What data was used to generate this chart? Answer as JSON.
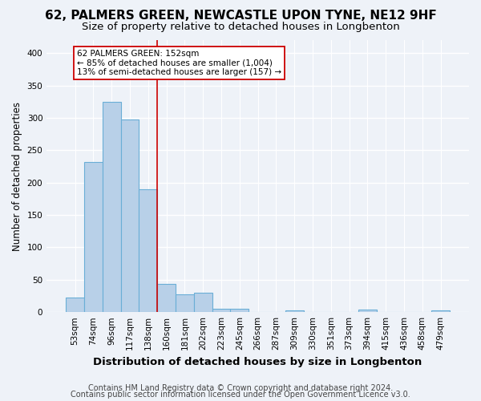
{
  "title": "62, PALMERS GREEN, NEWCASTLE UPON TYNE, NE12 9HF",
  "subtitle": "Size of property relative to detached houses in Longbenton",
  "xlabel": "Distribution of detached houses by size in Longbenton",
  "ylabel": "Number of detached properties",
  "categories": [
    "53sqm",
    "74sqm",
    "96sqm",
    "117sqm",
    "138sqm",
    "160sqm",
    "181sqm",
    "202sqm",
    "223sqm",
    "245sqm",
    "266sqm",
    "287sqm",
    "309sqm",
    "330sqm",
    "351sqm",
    "373sqm",
    "394sqm",
    "415sqm",
    "436sqm",
    "458sqm",
    "479sqm"
  ],
  "values": [
    23,
    232,
    325,
    297,
    190,
    44,
    28,
    30,
    5,
    5,
    0,
    0,
    3,
    0,
    0,
    0,
    4,
    0,
    0,
    0,
    3
  ],
  "bar_color": "#b8d0e8",
  "bar_edge_color": "#6aaed6",
  "vline_x": 4.5,
  "vline_color": "#cc0000",
  "annotation_line1": "62 PALMERS GREEN: 152sqm",
  "annotation_line2": "← 85% of detached houses are smaller (1,004)",
  "annotation_line3": "13% of semi-detached houses are larger (157) →",
  "annotation_box_color": "#ffffff",
  "annotation_box_edge": "#cc0000",
  "ylim": [
    0,
    420
  ],
  "yticks": [
    0,
    50,
    100,
    150,
    200,
    250,
    300,
    350,
    400
  ],
  "footer_line1": "Contains HM Land Registry data © Crown copyright and database right 2024.",
  "footer_line2": "Contains public sector information licensed under the Open Government Licence v3.0.",
  "bg_color": "#eef2f8",
  "grid_color": "#ffffff",
  "title_fontsize": 11,
  "subtitle_fontsize": 9.5,
  "tick_fontsize": 7.5,
  "ylabel_fontsize": 8.5,
  "xlabel_fontsize": 9.5,
  "footer_fontsize": 7
}
